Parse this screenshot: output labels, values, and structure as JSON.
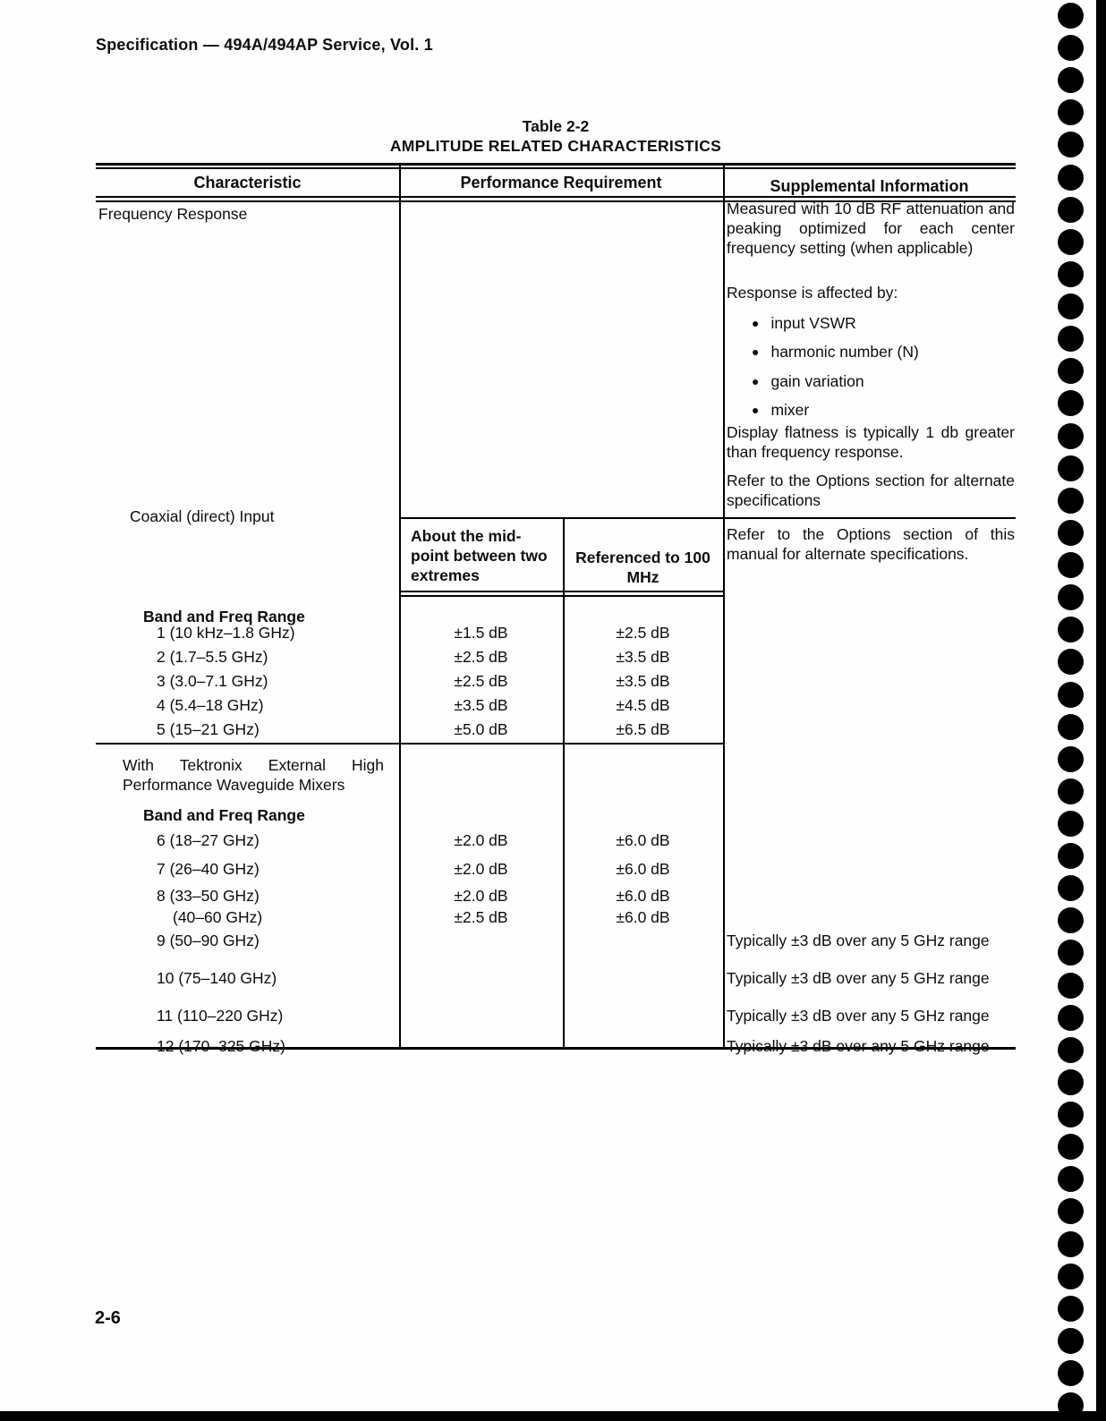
{
  "page": {
    "header_title": "Specification — 494A/494AP Service, Vol. 1",
    "page_number": "2-6"
  },
  "table": {
    "caption_line1": "Table 2-2",
    "caption_line2": "AMPLITUDE RELATED CHARACTERISTICS",
    "column_headers": {
      "characteristic": "Characteristic",
      "performance": "Performance Requirement",
      "supplemental": "Supplemental Information"
    },
    "frequency_response": {
      "label": "Frequency Response",
      "supplemental": {
        "p_measured": "Measured with 10 dB RF attenuation and peaking optimized for each center frequency setting (when applicable)",
        "p_response": "Response is affected by:",
        "bullet_char": "●",
        "bullets": [
          "input VSWR",
          "harmonic number (N)",
          "gain variation",
          "mixer"
        ],
        "p_flatness": "Display flatness is typically 1 db greater than frequency response.",
        "p_refer": "Refer to the Options section for alternate specifications"
      }
    },
    "coaxial": {
      "label": "Coaxial (direct) Input",
      "supplemental": "Refer to the Options section of this manual for alternate specifications.",
      "subheader_mid": "About the mid-point between two extremes",
      "subheader_ref": "Referenced to 100 MHz",
      "band_header": "Band and Freq Range",
      "bands": [
        {
          "label": "1 (10 kHz–1.8 GHz)",
          "mid": "±1.5 dB",
          "ref": "±2.5 dB"
        },
        {
          "label": "2 (1.7–5.5 GHz)",
          "mid": "±2.5 dB",
          "ref": "±3.5 dB"
        },
        {
          "label": "3 (3.0–7.1 GHz)",
          "mid": "±2.5 dB",
          "ref": "±3.5 dB"
        },
        {
          "label": "4 (5.4–18 GHz)",
          "mid": "±3.5 dB",
          "ref": "±4.5 dB"
        },
        {
          "label": "5 (15–21 GHz)",
          "mid": "±5.0 dB",
          "ref": "±6.5 dB"
        }
      ]
    },
    "waveguide": {
      "label": "With Tektronix External High Performance Waveguide Mixers",
      "band_header": "Band and Freq Range",
      "bands": [
        {
          "label": "6 (18–27 GHz)",
          "mid": "±2.0 dB",
          "ref": "±6.0 dB"
        },
        {
          "label": "7 (26–40 GHz)",
          "mid": "±2.0 dB",
          "ref": "±6.0 dB"
        },
        {
          "label": "8 (33–50 GHz)",
          "mid": "±2.0 dB",
          "ref": "±6.0 dB"
        },
        {
          "label": "(40–60 GHz)",
          "mid": "±2.5 dB",
          "ref": "±6.0 dB"
        },
        {
          "label": "9 (50–90 GHz)",
          "supplemental": "Typically ±3 dB over any 5 GHz range"
        },
        {
          "label": "10 (75–140 GHz)",
          "supplemental": "Typically ±3 dB over any 5 GHz range"
        },
        {
          "label": "11 (110–220 GHz)",
          "supplemental": "Typically ±3 dB over any 5 GHz range"
        },
        {
          "label": "12 (170–325 GHz)",
          "supplemental": "Typically ±3 dB over any 5 GHz range"
        }
      ]
    }
  },
  "decorations": {
    "binding_hole_count": 44,
    "ink_color": "#0d0d0d",
    "hole_color": "#000000"
  }
}
